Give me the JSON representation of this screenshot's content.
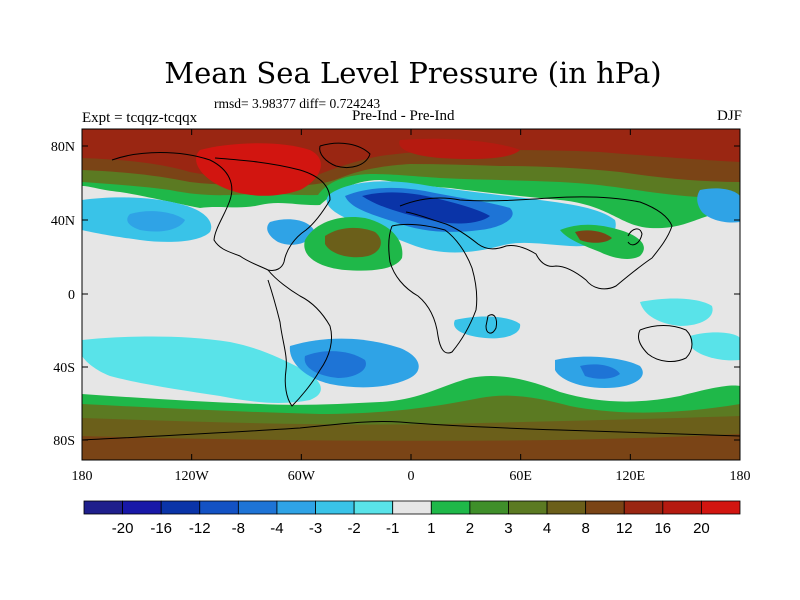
{
  "title": "Mean Sea Level Pressure (in hPa)",
  "stats": "rmsd= 3.98377 diff= 0.724243",
  "experiment": "Expt = tcqqz-tcqqx",
  "run_label": "Pre-Ind - Pre-Ind",
  "season": "DJF",
  "lat_ticks": [
    "80N",
    "40N",
    "0",
    "40S",
    "80S"
  ],
  "lon_ticks": [
    "180",
    "120W",
    "60W",
    "0",
    "60E",
    "120E",
    "180"
  ],
  "colorbar": {
    "colors": [
      "#1f1f8c",
      "#1818a8",
      "#0a34a8",
      "#1352c4",
      "#1e74d6",
      "#2fa3e6",
      "#39c3e8",
      "#59e3e9",
      "#e6e6e6",
      "#1fb849",
      "#3f8f2a",
      "#5b7a22",
      "#6b5f1a",
      "#7a4416",
      "#9a2612",
      "#b51a10",
      "#d21510"
    ],
    "labels": [
      "-20",
      "-16",
      "-12",
      "-8",
      "-4",
      "-3",
      "-2",
      "-1",
      "1",
      "2",
      "3",
      "4",
      "8",
      "12",
      "16",
      "20"
    ]
  }
}
